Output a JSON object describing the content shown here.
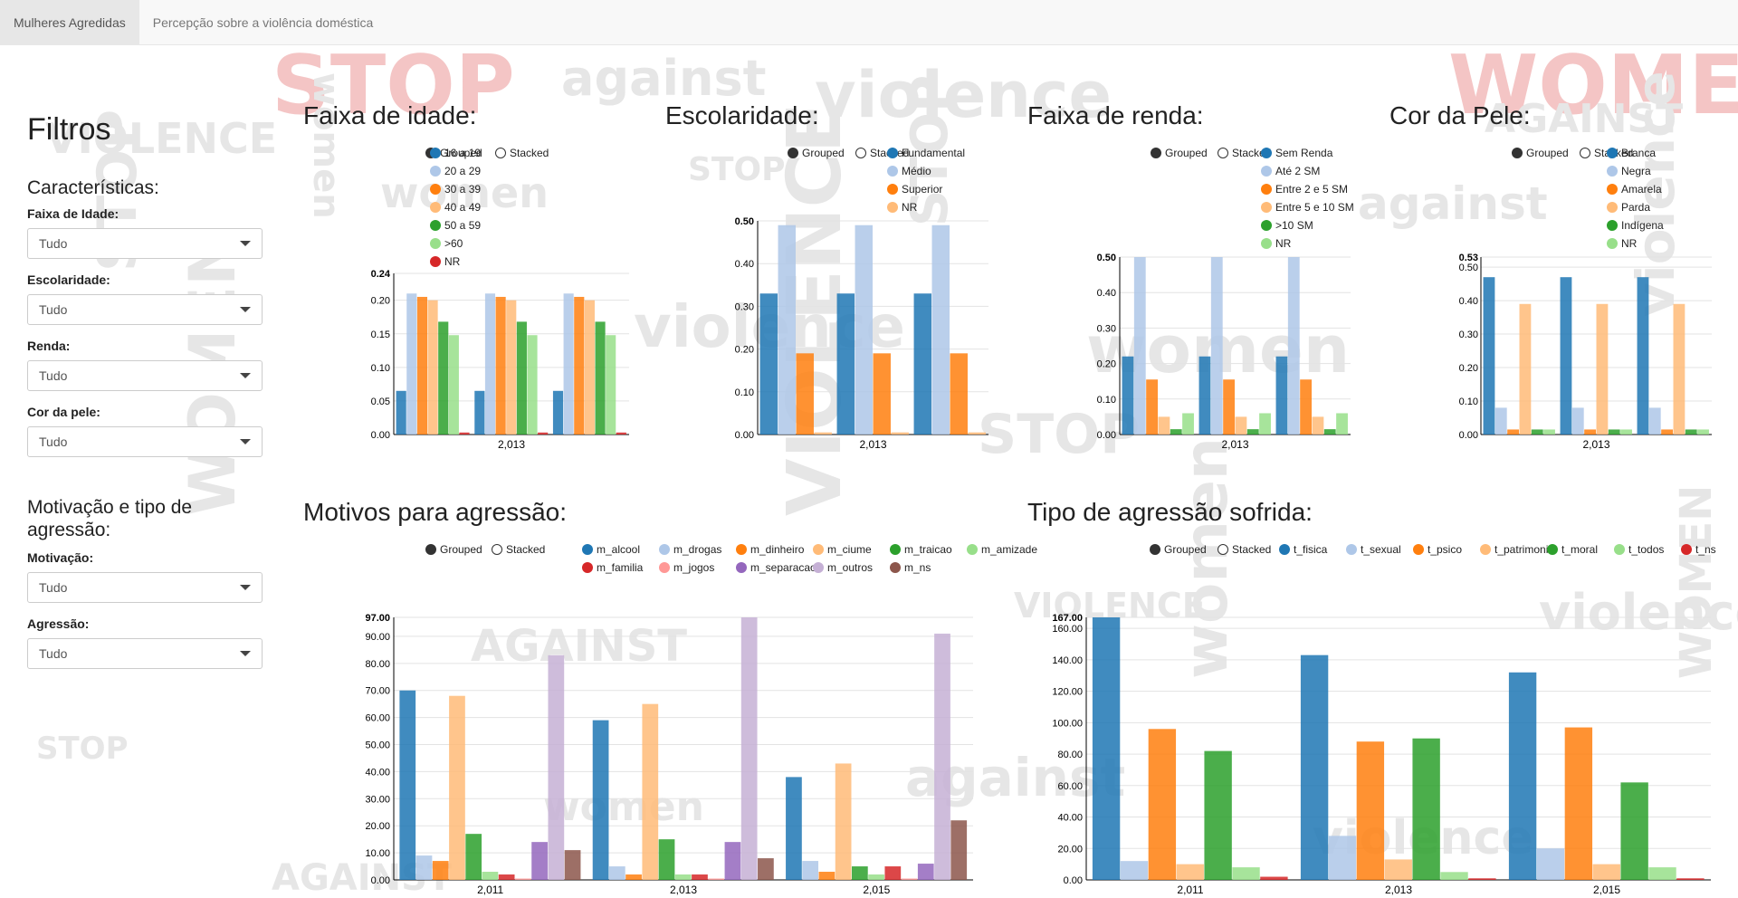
{
  "nav": {
    "tabs": [
      {
        "label": "Mulheres Agredidas",
        "active": true
      },
      {
        "label": "Percepção sobre a violência doméstica",
        "active": false
      }
    ]
  },
  "background": {
    "words": [
      "STOP",
      "women",
      "against",
      "violence",
      "WOMEN",
      "AGAINST",
      "VIOLENCE",
      "STOP",
      "women",
      "violence"
    ]
  },
  "sidebar": {
    "title": "Filtros",
    "section1": "Características:",
    "section2": "Motivação e tipo de agressão:",
    "filters": [
      {
        "label": "Faixa de Idade:",
        "value": "Tudo"
      },
      {
        "label": "Escolaridade:",
        "value": "Tudo"
      },
      {
        "label": "Renda:",
        "value": "Tudo"
      },
      {
        "label": "Cor da pele:",
        "value": "Tudo"
      },
      {
        "label": "Motivação:",
        "value": "Tudo"
      },
      {
        "label": "Agressão:",
        "value": "Tudo"
      }
    ]
  },
  "controls": {
    "grouped": "Grouped",
    "stacked": "Stacked"
  },
  "colors": {
    "c0": "#1f77b4",
    "c1": "#aec7e8",
    "c2": "#ff7f0e",
    "c3": "#ffbb78",
    "c4": "#2ca02c",
    "c5": "#98df8a",
    "c6": "#d62728",
    "c7": "#ff9896",
    "c8": "#9467bd",
    "c9": "#c5b0d5",
    "c10": "#8c564b"
  },
  "chart_data": [
    {
      "panel_title": "Faixa de idade:",
      "type": "bar",
      "categories": [
        "2,013"
      ],
      "series": [
        {
          "name": "16 a 19",
          "values": [
            0.065
          ]
        },
        {
          "name": "20 a 29",
          "values": [
            0.21
          ]
        },
        {
          "name": "30 a 39",
          "values": [
            0.205
          ]
        },
        {
          "name": "40 a 49",
          "values": [
            0.2
          ]
        },
        {
          "name": "50 a 59",
          "values": [
            0.168
          ]
        },
        {
          "name": ">60",
          "values": [
            0.148
          ]
        },
        {
          "name": "NR",
          "values": [
            0.003
          ]
        }
      ],
      "ylim": [
        0,
        0.24
      ],
      "yticks": [
        "0.00",
        "0.05",
        "0.10",
        "0.15",
        "0.20",
        "0.24"
      ]
    },
    {
      "panel_title": "Escolaridade:",
      "type": "bar",
      "categories": [
        "2,013"
      ],
      "series": [
        {
          "name": "Fundamental",
          "values": [
            0.33
          ]
        },
        {
          "name": "Médio",
          "values": [
            0.49
          ]
        },
        {
          "name": "Superior",
          "values": [
            0.19
          ]
        },
        {
          "name": "NR",
          "values": [
            0.005
          ]
        }
      ],
      "ylim": [
        0,
        0.5
      ],
      "yticks": [
        "0.00",
        "0.10",
        "0.20",
        "0.30",
        "0.40",
        "0.50"
      ]
    },
    {
      "panel_title": "Faixa de renda:",
      "type": "bar",
      "categories": [
        "2,013"
      ],
      "series": [
        {
          "name": "Sem Renda",
          "values": [
            0.22
          ]
        },
        {
          "name": "Até 2 SM",
          "values": [
            0.5
          ]
        },
        {
          "name": "Entre 2 e 5 SM",
          "values": [
            0.155
          ]
        },
        {
          "name": "Entre 5 e 10 SM",
          "values": [
            0.05
          ]
        },
        {
          "name": ">10 SM",
          "values": [
            0.015
          ]
        },
        {
          "name": "NR",
          "values": [
            0.06
          ]
        }
      ],
      "ylim": [
        0,
        0.5
      ],
      "yticks": [
        "0.00",
        "0.10",
        "0.20",
        "0.30",
        "0.40",
        "0.50"
      ]
    },
    {
      "panel_title": "Cor da Pele:",
      "type": "bar",
      "categories": [
        "2,013"
      ],
      "series": [
        {
          "name": "Branca",
          "values": [
            0.47
          ]
        },
        {
          "name": "Negra",
          "values": [
            0.08
          ]
        },
        {
          "name": "Amarela",
          "values": [
            0.015
          ]
        },
        {
          "name": "Parda",
          "values": [
            0.39
          ]
        },
        {
          "name": "Indígena",
          "values": [
            0.015
          ]
        },
        {
          "name": "NR",
          "values": [
            0.015
          ]
        }
      ],
      "ylim": [
        0,
        0.53
      ],
      "yticks": [
        "0.00",
        "0.10",
        "0.20",
        "0.30",
        "0.40",
        "0.50",
        "0.53"
      ]
    },
    {
      "panel_title": "Motivos para agressão:",
      "type": "bar",
      "categories": [
        "2,011",
        "2,013",
        "2,015"
      ],
      "series": [
        {
          "name": "m_alcool",
          "values": [
            70,
            59,
            38
          ]
        },
        {
          "name": "m_drogas",
          "values": [
            9,
            5,
            7
          ]
        },
        {
          "name": "m_dinheiro",
          "values": [
            7,
            2,
            3
          ]
        },
        {
          "name": "m_ciume",
          "values": [
            68,
            65,
            43
          ]
        },
        {
          "name": "m_traicao",
          "values": [
            17,
            15,
            5
          ]
        },
        {
          "name": "m_amizade",
          "values": [
            3,
            2,
            2
          ]
        },
        {
          "name": "m_familia",
          "values": [
            2,
            2,
            5
          ]
        },
        {
          "name": "m_jogos",
          "values": [
            0.5,
            0.5,
            0.5
          ]
        },
        {
          "name": "m_separacao",
          "values": [
            14,
            14,
            6
          ]
        },
        {
          "name": "m_outros",
          "values": [
            83,
            97,
            91
          ]
        },
        {
          "name": "m_ns",
          "values": [
            11,
            8,
            22
          ]
        }
      ],
      "ylim": [
        0,
        97
      ],
      "yticks": [
        "0.00",
        "10.00",
        "20.00",
        "30.00",
        "40.00",
        "50.00",
        "60.00",
        "70.00",
        "80.00",
        "90.00",
        "97.00"
      ]
    },
    {
      "panel_title": "Tipo de agressão sofrida:",
      "type": "bar",
      "categories": [
        "2,011",
        "2,013",
        "2,015"
      ],
      "series": [
        {
          "name": "t_fisica",
          "values": [
            167,
            143,
            132
          ]
        },
        {
          "name": "t_sexual",
          "values": [
            12,
            28,
            20
          ]
        },
        {
          "name": "t_psico",
          "values": [
            96,
            88,
            97
          ]
        },
        {
          "name": "t_patrimonio",
          "values": [
            10,
            13,
            10
          ]
        },
        {
          "name": "t_moral",
          "values": [
            82,
            90,
            62
          ]
        },
        {
          "name": "t_todos",
          "values": [
            8,
            5,
            8
          ]
        },
        {
          "name": "t_ns",
          "values": [
            2,
            1,
            1
          ]
        }
      ],
      "ylim": [
        0,
        167
      ],
      "yticks": [
        "0.00",
        "20.00",
        "40.00",
        "60.00",
        "80.00",
        "100.00",
        "120.00",
        "140.00",
        "160.00",
        "167.00"
      ]
    }
  ]
}
